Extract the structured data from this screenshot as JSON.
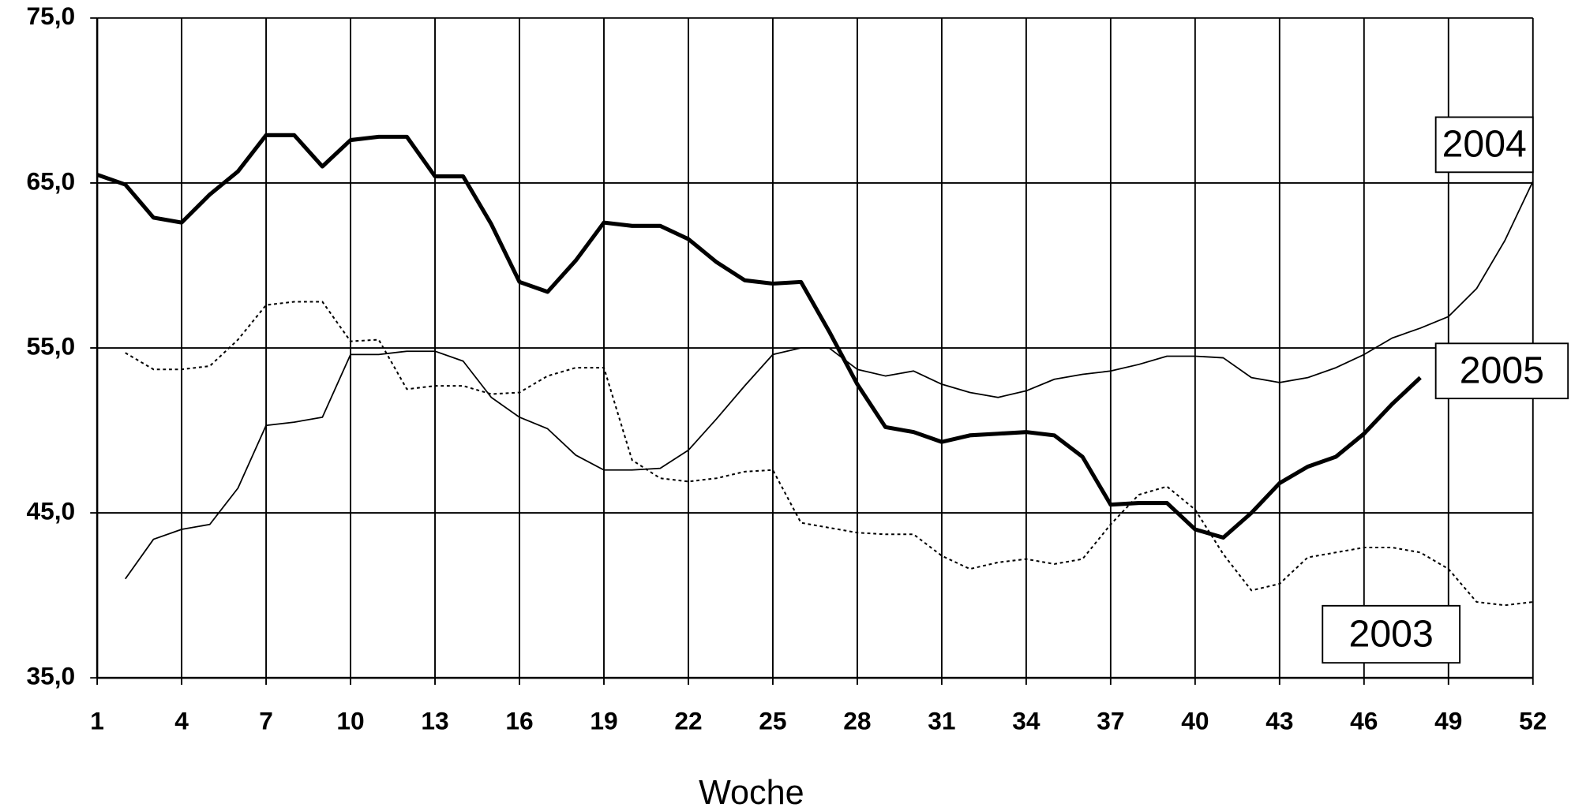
{
  "chart_data": {
    "type": "line",
    "x": [
      1,
      2,
      3,
      4,
      5,
      6,
      7,
      8,
      9,
      10,
      11,
      12,
      13,
      14,
      15,
      16,
      17,
      18,
      19,
      20,
      21,
      22,
      23,
      24,
      25,
      26,
      27,
      28,
      29,
      30,
      31,
      32,
      33,
      34,
      35,
      36,
      37,
      38,
      39,
      40,
      41,
      42,
      43,
      44,
      45,
      46,
      47,
      48,
      49,
      50,
      51,
      52
    ],
    "xlim": [
      1,
      52
    ],
    "xticks": [
      1,
      4,
      7,
      10,
      13,
      16,
      19,
      22,
      25,
      28,
      31,
      34,
      37,
      40,
      43,
      46,
      49,
      52
    ],
    "ylim": [
      35,
      75
    ],
    "yticks": [
      {
        "value": 35,
        "label": "35,0"
      },
      {
        "value": 45,
        "label": "45,0"
      },
      {
        "value": 55,
        "label": "55,0"
      },
      {
        "value": 65,
        "label": "65,0"
      },
      {
        "value": 75,
        "label": "75,0"
      }
    ],
    "grid": true,
    "x_label": "Woche",
    "series": [
      {
        "name": "2005",
        "color": "#000000",
        "style": "thick",
        "values": [
          65.5,
          64.9,
          62.9,
          62.6,
          64.3,
          65.7,
          67.9,
          67.9,
          66.0,
          67.6,
          67.8,
          67.8,
          65.4,
          65.4,
          62.5,
          59.0,
          58.4,
          60.3,
          62.6,
          62.4,
          62.4,
          61.6,
          60.2,
          59.1,
          58.9,
          59.0,
          56.0,
          52.8,
          50.2,
          49.9,
          49.3,
          49.7,
          49.8,
          49.9,
          49.7,
          48.4,
          45.5,
          45.6,
          45.6,
          44.0,
          43.5,
          45.0,
          46.8,
          47.8,
          48.4,
          49.8,
          51.6,
          53.2,
          null,
          null,
          null,
          null
        ]
      },
      {
        "name": "2004",
        "color": "#000000",
        "style": "thin",
        "values": [
          null,
          41.0,
          43.4,
          44.0,
          44.3,
          46.5,
          50.3,
          50.5,
          50.8,
          54.6,
          54.6,
          54.8,
          54.8,
          54.2,
          52.0,
          50.8,
          50.1,
          48.5,
          47.6,
          47.6,
          47.7,
          48.8,
          50.7,
          52.7,
          54.6,
          55.0,
          55.0,
          53.7,
          53.3,
          53.6,
          52.8,
          52.3,
          52.0,
          52.4,
          53.1,
          53.4,
          53.6,
          54.0,
          54.5,
          54.5,
          54.4,
          53.2,
          52.9,
          53.2,
          53.8,
          54.6,
          55.6,
          56.2,
          56.9,
          58.6,
          61.5,
          65.1
        ]
      },
      {
        "name": "2003",
        "color": "#000000",
        "style": "dotted",
        "values": [
          null,
          54.7,
          53.7,
          53.7,
          53.9,
          55.5,
          57.6,
          57.8,
          57.8,
          55.4,
          55.5,
          52.5,
          52.7,
          52.7,
          52.2,
          52.3,
          53.3,
          53.8,
          53.8,
          48.2,
          47.1,
          46.9,
          47.1,
          47.5,
          47.6,
          44.4,
          44.1,
          43.8,
          43.7,
          43.7,
          42.4,
          41.6,
          42.0,
          42.2,
          41.9,
          42.2,
          44.3,
          46.1,
          46.6,
          45.2,
          42.5,
          40.3,
          40.7,
          42.3,
          42.6,
          42.9,
          42.9,
          42.6,
          41.6,
          39.6,
          39.4,
          39.6
        ]
      }
    ]
  }
}
